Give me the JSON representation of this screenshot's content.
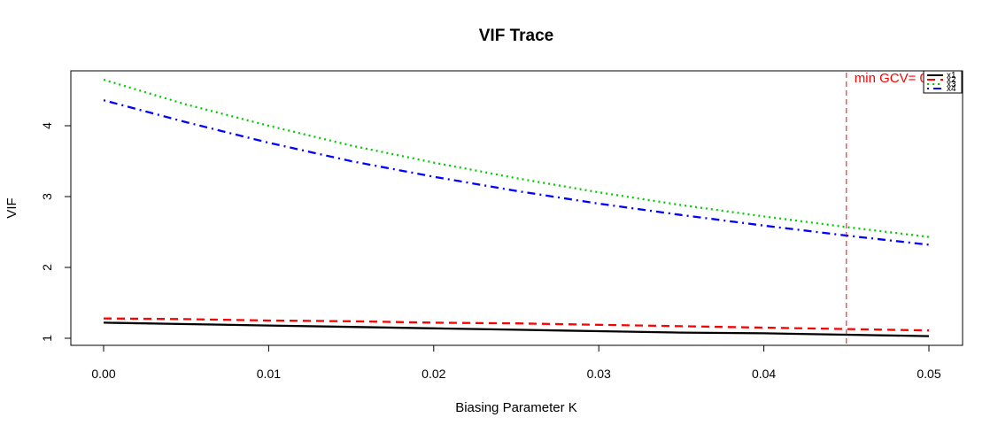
{
  "chart_data": {
    "type": "line",
    "title": "VIF Trace",
    "xlabel": "Biasing Parameter K",
    "ylabel": "VIF",
    "xlim": [
      0,
      0.05
    ],
    "ylim": [
      1,
      4.65
    ],
    "x_ticks": [
      "0.00",
      "0.01",
      "0.02",
      "0.03",
      "0.04",
      "0.05"
    ],
    "y_ticks": [
      "1",
      "2",
      "3",
      "4"
    ],
    "x": [
      0.0,
      0.005,
      0.01,
      0.015,
      0.02,
      0.025,
      0.03,
      0.035,
      0.04,
      0.045,
      0.05
    ],
    "series": [
      {
        "name": "x1",
        "color": "#000000",
        "dash": "solid",
        "values": [
          1.22,
          1.2,
          1.18,
          1.16,
          1.14,
          1.12,
          1.1,
          1.08,
          1.07,
          1.05,
          1.03
        ]
      },
      {
        "name": "x2",
        "color": "#ff0000",
        "dash": "dashed",
        "values": [
          1.28,
          1.27,
          1.25,
          1.24,
          1.22,
          1.21,
          1.19,
          1.17,
          1.15,
          1.13,
          1.11
        ]
      },
      {
        "name": "x3",
        "color": "#00cd00",
        "dash": "dotted",
        "values": [
          4.65,
          4.3,
          4.0,
          3.72,
          3.48,
          3.26,
          3.06,
          2.88,
          2.72,
          2.57,
          2.43
        ]
      },
      {
        "name": "x4",
        "color": "#0000ff",
        "dash": "dotdash",
        "values": [
          4.36,
          4.05,
          3.76,
          3.5,
          3.28,
          3.08,
          2.9,
          2.74,
          2.59,
          2.45,
          2.32
        ]
      }
    ],
    "vline": {
      "x": 0.045,
      "color": "#ff0000"
    },
    "annotation": {
      "text": "min GCV= 0.004",
      "color": "#ff0000"
    },
    "legend": {
      "placement": "top-right",
      "entries": [
        "x1",
        "x2",
        "x3",
        "x4"
      ]
    },
    "grid": false
  }
}
